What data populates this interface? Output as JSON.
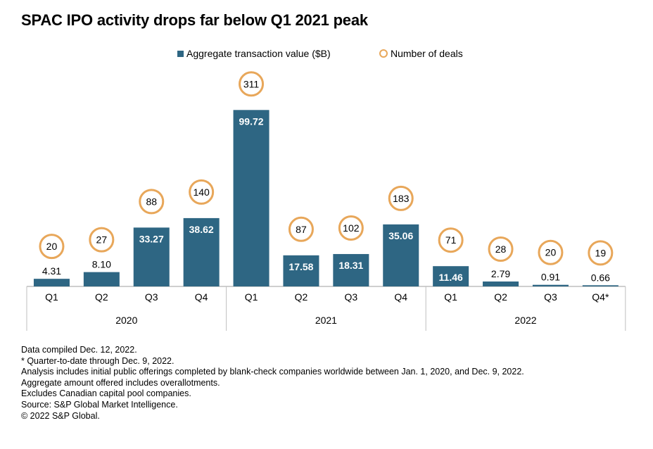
{
  "title": "SPAC IPO activity drops far below Q1 2021 peak",
  "legend": {
    "value_label": "Aggregate transaction value ($B)",
    "deals_label": "Number of deals"
  },
  "colors": {
    "bar": "#2e6683",
    "circle": "#e8a75a",
    "axis": "#bfbfbf"
  },
  "chart_data": {
    "type": "bar",
    "categories": [
      "Q1",
      "Q2",
      "Q3",
      "Q4",
      "Q1",
      "Q2",
      "Q3",
      "Q4",
      "Q1",
      "Q2",
      "Q3",
      "Q4*"
    ],
    "groups": [
      {
        "label": "2020",
        "count": 4
      },
      {
        "label": "2021",
        "count": 4
      },
      {
        "label": "2022",
        "count": 4
      }
    ],
    "series": [
      {
        "name": "Aggregate transaction value ($B)",
        "type": "bar",
        "values": [
          4.31,
          8.1,
          33.27,
          38.62,
          99.72,
          17.58,
          18.31,
          35.06,
          11.46,
          2.79,
          0.91,
          0.66
        ],
        "labels": [
          "4.31",
          "8.10",
          "33.27",
          "38.62",
          "99.72",
          "17.58",
          "18.31",
          "35.06",
          "11.46",
          "2.79",
          "0.91",
          "0.66"
        ]
      },
      {
        "name": "Number of deals",
        "type": "circle",
        "values": [
          20,
          27,
          88,
          140,
          311,
          87,
          102,
          183,
          71,
          28,
          20,
          19
        ],
        "labels": [
          "20",
          "27",
          "88",
          "140",
          "311",
          "87",
          "102",
          "183",
          "71",
          "28",
          "20",
          "19"
        ]
      }
    ],
    "xlabel": "",
    "ylabel": "",
    "grid": false,
    "legend_position": "top-center"
  },
  "notes": [
    "Data compiled Dec. 12, 2022.",
    "* Quarter-to-date through Dec. 9, 2022.",
    "Analysis includes initial public offerings completed by blank-check companies worldwide between Jan. 1, 2020, and Dec. 9, 2022.",
    "Aggregate amount offered includes overallotments.",
    "Excludes Canadian capital pool companies.",
    "Source: S&P Global Market Intelligence.",
    "© 2022 S&P Global."
  ]
}
